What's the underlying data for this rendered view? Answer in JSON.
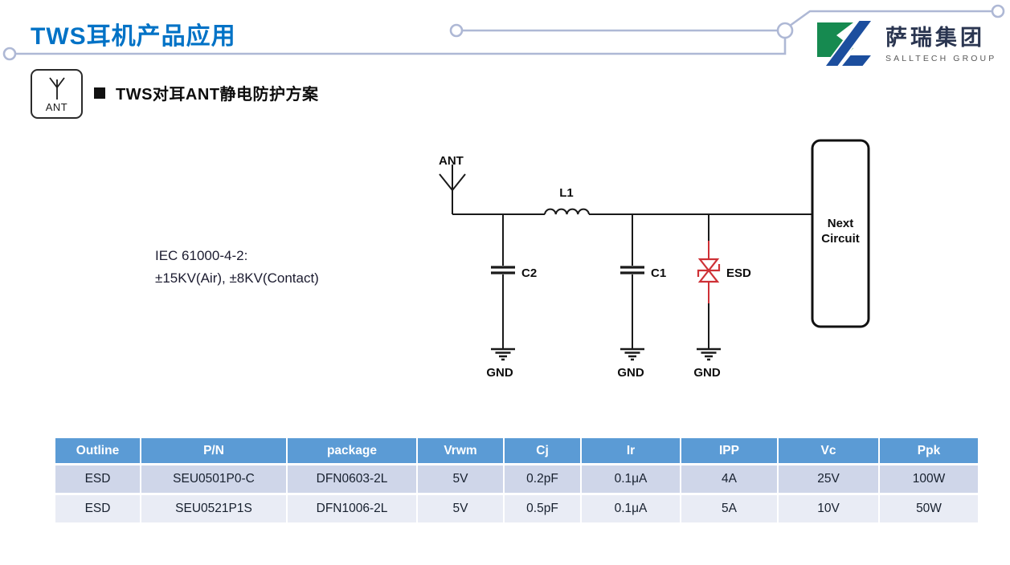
{
  "page": {
    "title": "TWS耳机产品应用"
  },
  "logo": {
    "cn": "萨瑞集团",
    "en": "SALLTECH GROUP"
  },
  "section": {
    "heading": "TWS对耳ANT静电防护方案",
    "ant_badge_label": "ANT"
  },
  "note": {
    "line1": "IEC 61000-4-2:",
    "line2": "±15KV(Air), ±8KV(Contact)"
  },
  "circuit": {
    "ant_label": "ANT",
    "l1_label": "L1",
    "c2_label": "C2",
    "c1_label": "C1",
    "esd_label": "ESD",
    "next_circuit_line1": "Next",
    "next_circuit_line2": "Circuit",
    "gnd_labels": [
      "GND",
      "GND",
      "GND"
    ]
  },
  "colors": {
    "title_blue": "#0072C6",
    "trace_gray_blue": "#AEB8D5",
    "table_header_bg": "#5B9BD5",
    "table_row_odd": "#CFD6E9",
    "table_row_even": "#E9ECF5",
    "esd_red": "#CE3136",
    "logo_green": "#168A50",
    "logo_blue": "#1C4E9E"
  },
  "table": {
    "columns": [
      "Outline",
      "P/N",
      "package",
      "Vrwm",
      "Cj",
      "Ir",
      "IPP",
      "Vc",
      "Ppk"
    ],
    "rows": [
      [
        "ESD",
        "SEU0501P0-C",
        "DFN0603-2L",
        "5V",
        "0.2pF",
        "0.1μA",
        "4A",
        "25V",
        "100W"
      ],
      [
        "ESD",
        "SEU0521P1S",
        "DFN1006-2L",
        "5V",
        "0.5pF",
        "0.1μA",
        "5A",
        "10V",
        "50W"
      ]
    ]
  }
}
